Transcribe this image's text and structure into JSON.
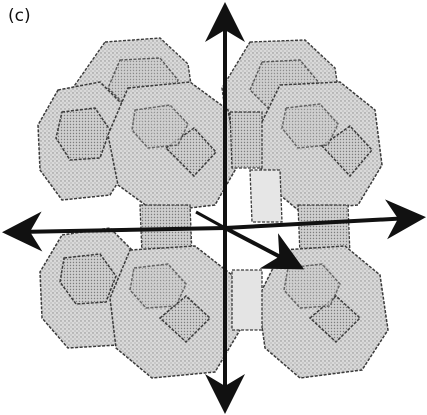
{
  "panel": {
    "label": "(c)"
  },
  "colors": {
    "cage_fill": "#d6d6d6",
    "cage_edge": "#3a3a3a",
    "face_fill": "#c4c4c4",
    "arrow": "#111111"
  },
  "icons": {
    "structure": "zeolite-cage-framework",
    "axes": "cartesian-axes-arrows"
  }
}
